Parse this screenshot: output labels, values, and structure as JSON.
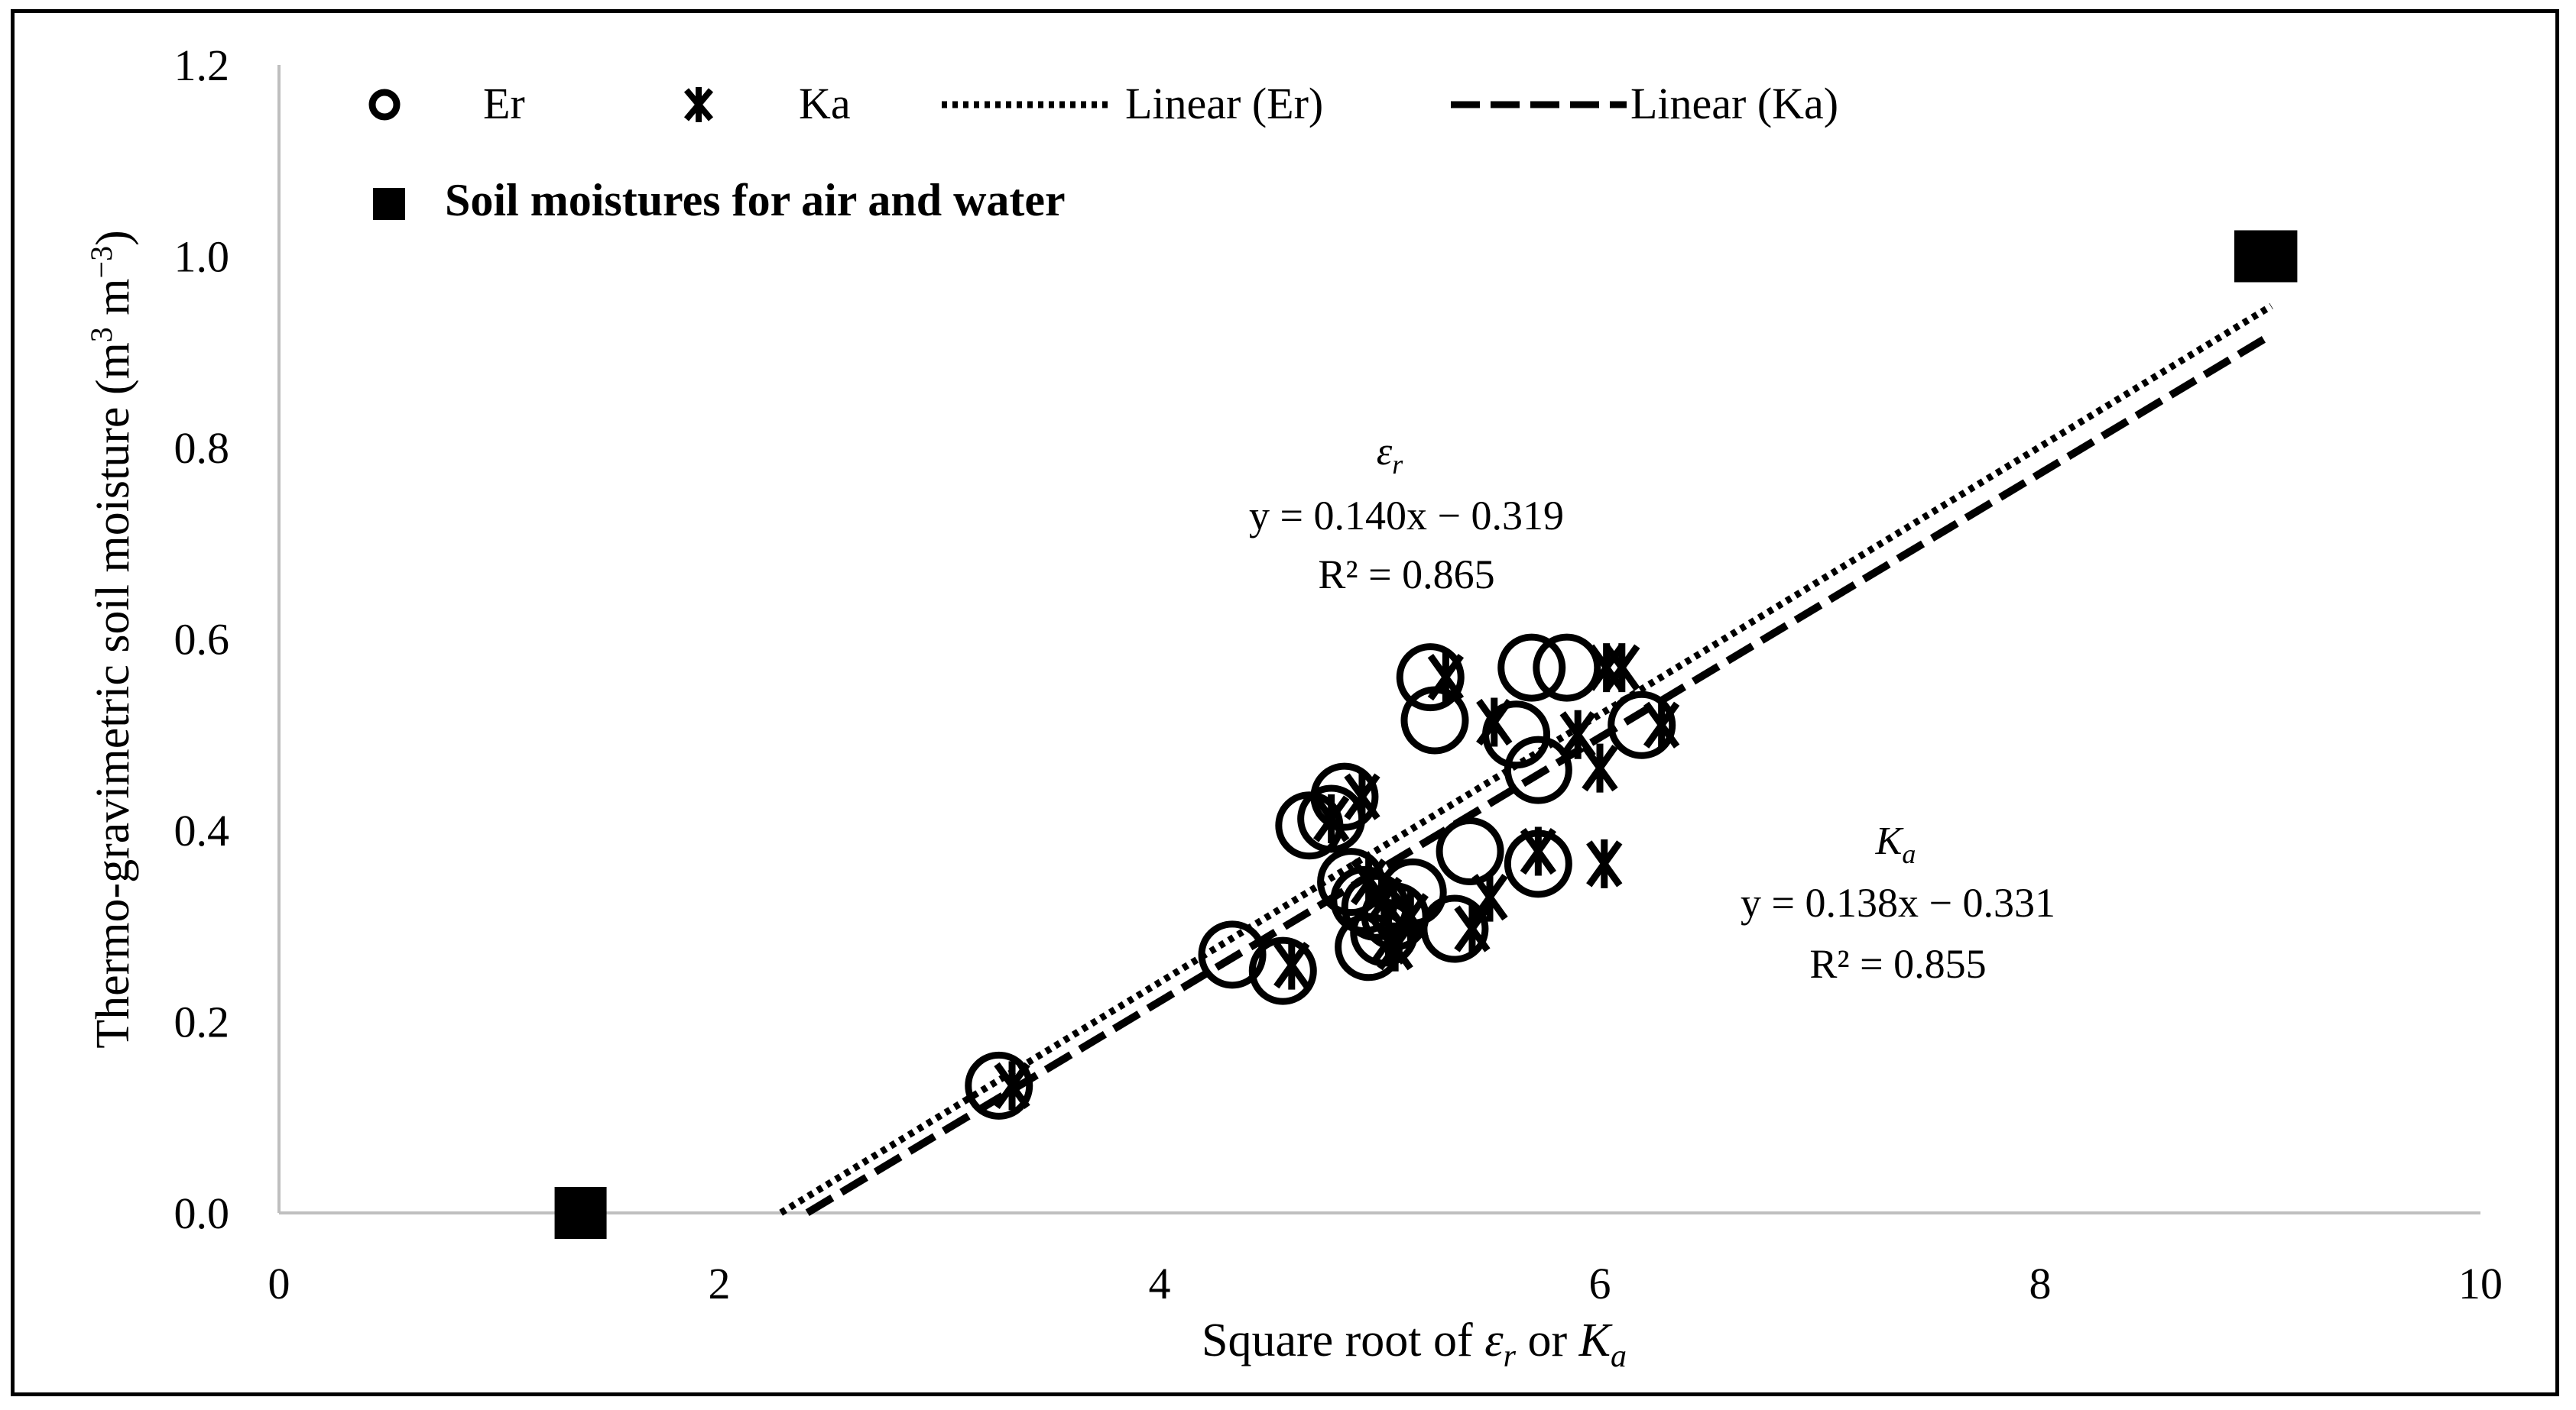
{
  "chart_data": {
    "type": "scatter",
    "title": "",
    "xlabel": {
      "prefix": "Square root of ",
      "sym1": "ε",
      "sub1": "r",
      "middle": " or ",
      "sym2": "K",
      "sub2": "a"
    },
    "ylabel": {
      "text": "Thermo-gravimetric soil moisture (m",
      "sup1": "3",
      "mid": " m",
      "sup2": "−3",
      "end": ")"
    },
    "xlim": [
      0,
      10
    ],
    "ylim": [
      0,
      1.2
    ],
    "x_ticks": [
      0,
      2,
      4,
      6,
      8,
      10
    ],
    "x_tick_labels": [
      "0",
      "2",
      "4",
      "6",
      "8",
      "10"
    ],
    "y_ticks": [
      0,
      0.2,
      0.4,
      0.6,
      0.8,
      1.0,
      1.2
    ],
    "y_tick_labels": [
      "0.0",
      "0.2",
      "0.4",
      "0.6",
      "0.8",
      "1.0",
      "1.2"
    ],
    "grid": false,
    "legend_position": "top",
    "legend": {
      "er": "Er",
      "ka": "Ka",
      "lin_er": "Linear (Er)",
      "lin_ka": "Linear (Ka)",
      "soil": "Soil moistures for air and water"
    },
    "series": [
      {
        "name": "Er",
        "marker": "open-circle",
        "points": [
          [
            3.27,
            0.133
          ],
          [
            4.33,
            0.27
          ],
          [
            4.56,
            0.253
          ],
          [
            4.68,
            0.405
          ],
          [
            4.78,
            0.412
          ],
          [
            4.84,
            0.435
          ],
          [
            4.87,
            0.346
          ],
          [
            4.93,
            0.327
          ],
          [
            4.95,
            0.278
          ],
          [
            4.98,
            0.32
          ],
          [
            5.02,
            0.293
          ],
          [
            5.07,
            0.31
          ],
          [
            5.15,
            0.335
          ],
          [
            5.23,
            0.56
          ],
          [
            5.25,
            0.515
          ],
          [
            5.34,
            0.297
          ],
          [
            5.41,
            0.378
          ],
          [
            5.62,
            0.5
          ],
          [
            5.69,
            0.57
          ],
          [
            5.72,
            0.463
          ],
          [
            5.72,
            0.365
          ],
          [
            5.85,
            0.57
          ],
          [
            6.19,
            0.51
          ]
        ]
      },
      {
        "name": "Ka",
        "marker": "asterisk",
        "points": [
          [
            3.33,
            0.133
          ],
          [
            4.6,
            0.259
          ],
          [
            4.78,
            0.412
          ],
          [
            4.92,
            0.435
          ],
          [
            4.95,
            0.346
          ],
          [
            5.02,
            0.327
          ],
          [
            5.04,
            0.284
          ],
          [
            5.07,
            0.278
          ],
          [
            5.14,
            0.31
          ],
          [
            5.3,
            0.56
          ],
          [
            5.42,
            0.297
          ],
          [
            5.5,
            0.33
          ],
          [
            5.52,
            0.513
          ],
          [
            5.72,
            0.378
          ],
          [
            5.9,
            0.5
          ],
          [
            6.0,
            0.465
          ],
          [
            6.02,
            0.365
          ],
          [
            6.03,
            0.57
          ],
          [
            6.1,
            0.57
          ],
          [
            6.28,
            0.51
          ]
        ]
      },
      {
        "name": "Soil moistures for air and water",
        "marker": "filled-square",
        "points": [
          [
            1.37,
            0.0
          ],
          [
            9.0,
            1.0
          ],
          [
            9.05,
            1.0
          ]
        ]
      }
    ],
    "trendlines": [
      {
        "name": "Linear (Er)",
        "style": "dotted",
        "slope": 0.14,
        "intercept": -0.319,
        "x_range": [
          2.28,
          9.05
        ]
      },
      {
        "name": "Linear (Ka)",
        "style": "dashed",
        "slope": 0.138,
        "intercept": -0.331,
        "x_range": [
          2.4,
          9.05
        ]
      }
    ],
    "annotations": {
      "er": {
        "sym": "ε",
        "sub": "r",
        "eq": "y = 0.140x − 0.319",
        "r2": "R² = 0.865"
      },
      "ka": {
        "sym": "K",
        "sub": "a",
        "eq": "y = 0.138x − 0.331",
        "r2": "R² = 0.855"
      }
    }
  }
}
